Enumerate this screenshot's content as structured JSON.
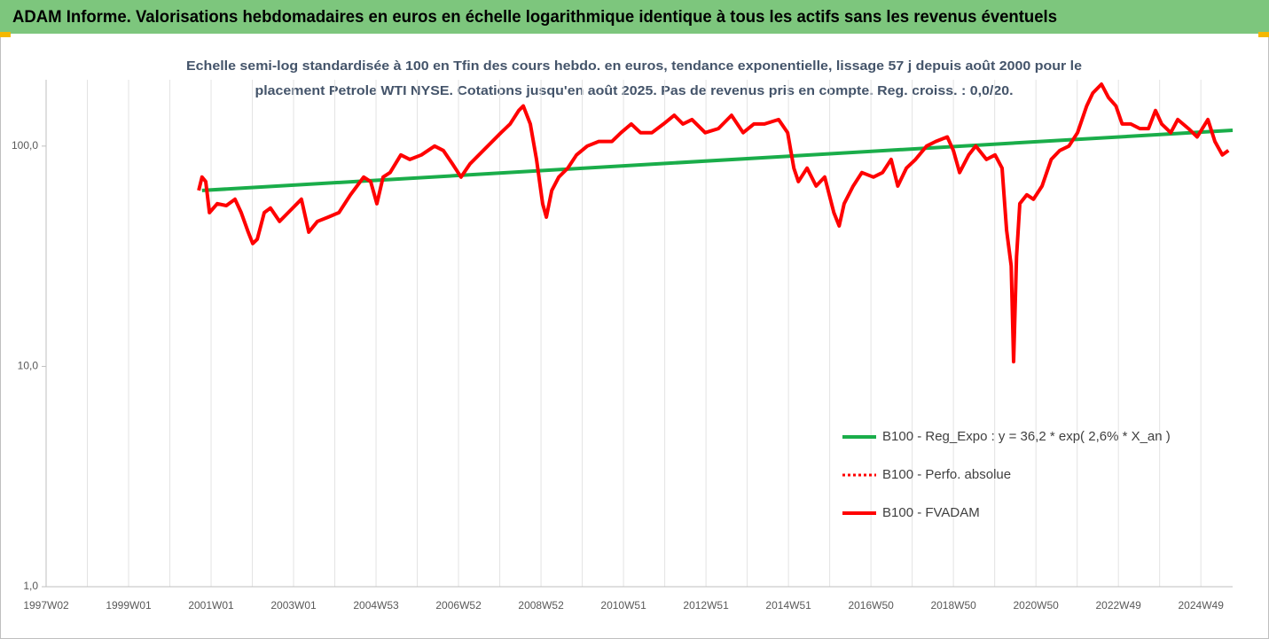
{
  "chart_data": {
    "type": "line",
    "title": "ADAM Informe. Valorisations hebdomadaires en euros en échelle logarithmique identique à tous les actifs sans les revenus éventuels",
    "subtitle": [
      "Echelle semi-log standardisée à 100 en Tfin des cours hebdo. en euros, tendance exponentielle, lissage 57 j depuis août 2000 pour le",
      "placement Petrole WTI NYSE.  Cotations jusqu'en août 2025. Pas de revenus pris en compte. Reg. croiss. : 0,0/20."
    ],
    "log_y": true,
    "ylim": [
      1,
      200
    ],
    "yticks": [
      {
        "value": 1,
        "label": "1,0"
      },
      {
        "value": 10,
        "label": "10,0"
      },
      {
        "value": 100,
        "label": "100,0"
      }
    ],
    "xlim": [
      1997,
      2025.77
    ],
    "xticks": [
      {
        "value": 1997,
        "label": "1997W02"
      },
      {
        "value": 1999,
        "label": "1999W01"
      },
      {
        "value": 2001,
        "label": "2001W01"
      },
      {
        "value": 2003,
        "label": "2003W01"
      },
      {
        "value": 2005,
        "label": "2004W53"
      },
      {
        "value": 2007,
        "label": "2006W52"
      },
      {
        "value": 2009,
        "label": "2008W52"
      },
      {
        "value": 2011,
        "label": "2010W51"
      },
      {
        "value": 2013,
        "label": "2012W51"
      },
      {
        "value": 2015,
        "label": "2014W51"
      },
      {
        "value": 2017,
        "label": "2016W50"
      },
      {
        "value": 2019,
        "label": "2018W50"
      },
      {
        "value": 2021,
        "label": "2020W50"
      },
      {
        "value": 2023,
        "label": "2022W49"
      },
      {
        "value": 2025,
        "label": "2024W49"
      }
    ],
    "x_minor_ticks": [
      1998,
      2000,
      2002,
      2004,
      2006,
      2008,
      2010,
      2012,
      2014,
      2016,
      2018,
      2020,
      2022,
      2024
    ],
    "grid": "x",
    "series": [
      {
        "name": "B100 - Reg_Expo : y = 36,2 * exp( 2,6% *  X_an )",
        "color": "#1aad4a",
        "style": "solid",
        "x": [
          2000.78,
          2025.77
        ],
        "values": [
          62.9,
          118
        ]
      },
      {
        "name": "B100 - Perfo. absolue",
        "color": "#ff0000",
        "style": "dotted",
        "x": [],
        "values": []
      },
      {
        "name": "B100 - FVADAM",
        "color": "#ff0000",
        "style": "solid",
        "x": [
          2000.7,
          2000.78,
          2000.87,
          2000.96,
          2001.15,
          2001.37,
          2001.58,
          2001.73,
          2001.9,
          2002.01,
          2002.12,
          2002.29,
          2002.44,
          2002.66,
          2002.87,
          2003.19,
          2003.37,
          2003.58,
          2003.84,
          2004.1,
          2004.38,
          2004.7,
          2004.87,
          2005.02,
          2005.17,
          2005.34,
          2005.6,
          2005.82,
          2006.1,
          2006.42,
          2006.63,
          2006.85,
          2007.06,
          2007.28,
          2007.6,
          2007.82,
          2008.03,
          2008.25,
          2008.46,
          2008.57,
          2008.74,
          2008.89,
          2009.04,
          2009.13,
          2009.26,
          2009.43,
          2009.65,
          2009.86,
          2010.12,
          2010.4,
          2010.72,
          2010.94,
          2011.19,
          2011.41,
          2011.69,
          2011.97,
          2012.23,
          2012.44,
          2012.66,
          2012.98,
          2013.3,
          2013.62,
          2013.9,
          2014.16,
          2014.42,
          2014.76,
          2014.98,
          2015.13,
          2015.24,
          2015.45,
          2015.67,
          2015.88,
          2016.1,
          2016.23,
          2016.35,
          2016.57,
          2016.78,
          2017.06,
          2017.28,
          2017.49,
          2017.65,
          2017.86,
          2018.08,
          2018.35,
          2018.57,
          2018.85,
          2019.0,
          2019.15,
          2019.37,
          2019.54,
          2019.8,
          2020.01,
          2020.18,
          2020.29,
          2020.4,
          2020.46,
          2020.53,
          2020.61,
          2020.78,
          2020.94,
          2021.15,
          2021.37,
          2021.58,
          2021.8,
          2022.01,
          2022.23,
          2022.38,
          2022.59,
          2022.76,
          2022.94,
          2023.09,
          2023.3,
          2023.52,
          2023.73,
          2023.9,
          2024.05,
          2024.27,
          2024.44,
          2024.7,
          2024.91,
          2025.17,
          2025.34,
          2025.52,
          2025.67
        ],
        "values": [
          62.9,
          72.3,
          69.0,
          49.9,
          54.8,
          53.7,
          57.4,
          49.9,
          40.7,
          36.1,
          37.8,
          49.9,
          52.3,
          45.5,
          49.9,
          57.4,
          40.7,
          45.5,
          47.6,
          49.9,
          60.1,
          72.3,
          69.0,
          54.8,
          72.3,
          75.8,
          91.2,
          87.0,
          91.2,
          100,
          95.5,
          83.1,
          72.3,
          83.1,
          95.5,
          105,
          115,
          126,
          145,
          152,
          126,
          87.0,
          54.8,
          47.6,
          62.9,
          72.3,
          79.4,
          91.2,
          100,
          105,
          105,
          115,
          126,
          115,
          115,
          126,
          138,
          126,
          132,
          115,
          120,
          138,
          115,
          126,
          126,
          132,
          115,
          79.4,
          69.0,
          79.4,
          65.9,
          72.3,
          49.9,
          43.4,
          54.8,
          65.9,
          75.8,
          72.3,
          75.8,
          87.0,
          65.9,
          79.4,
          87.0,
          100,
          105,
          110,
          95.5,
          75.8,
          91.2,
          100,
          87.0,
          91.2,
          79.4,
          41.5,
          28.6,
          10.5,
          31.4,
          54.8,
          60.1,
          57.4,
          65.9,
          87.0,
          95.5,
          100,
          115,
          152,
          174,
          191,
          166,
          152,
          126,
          126,
          120,
          120,
          145,
          126,
          115,
          132,
          120,
          110,
          132,
          105,
          91.2,
          95.5
        ]
      }
    ]
  }
}
